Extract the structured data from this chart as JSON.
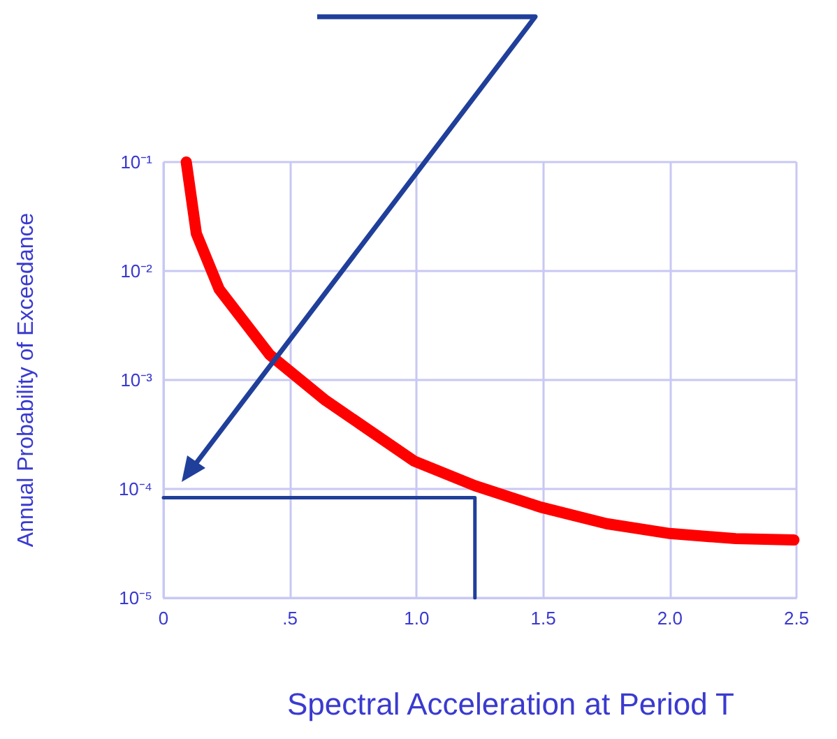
{
  "chart_data": {
    "type": "line",
    "xlabel": "Spectral Acceleration at Period T",
    "ylabel": "Annual Probability of Exceedance",
    "series": [
      {
        "color": "#ff0000",
        "x": [
          0.09,
          0.13,
          0.22,
          0.42,
          0.64,
          0.99,
          1.23,
          1.49,
          1.75,
          2.0,
          2.26,
          2.49
        ],
        "values": [
          0.1,
          0.022,
          0.0068,
          0.0017,
          0.00065,
          0.00018,
          0.000107,
          6.8e-05,
          4.8e-05,
          3.9e-05,
          3.5e-05,
          3.4e-05
        ]
      },
      {
        "color": "#1f3f9a",
        "x": [
          0,
          1.23,
          1.23
        ],
        "values": [
          8.3e-05,
          8.3e-05,
          1e-05
        ]
      }
    ],
    "xlim": [
      0,
      2.5
    ],
    "xticks": [
      0,
      {
        "value": 0.5,
        "label": ".5"
      },
      {
        "value": 1,
        "label": "1.0"
      },
      1.5,
      {
        "value": 2,
        "label": "2.0"
      },
      2.5
    ],
    "ylim": [
      1e-05,
      0.1
    ],
    "yticks": [
      {
        "value": 1e-05,
        "label": "10⁻⁵"
      },
      {
        "value": 0.0001,
        "label": "10⁻⁴"
      },
      {
        "value": 0.001,
        "label": "10⁻³"
      },
      {
        "value": 0.01,
        "label": "10⁻²"
      },
      {
        "value": 0.1,
        "label": "10⁻¹"
      }
    ],
    "log": true,
    "grid": true,
    "marker": "none"
  }
}
